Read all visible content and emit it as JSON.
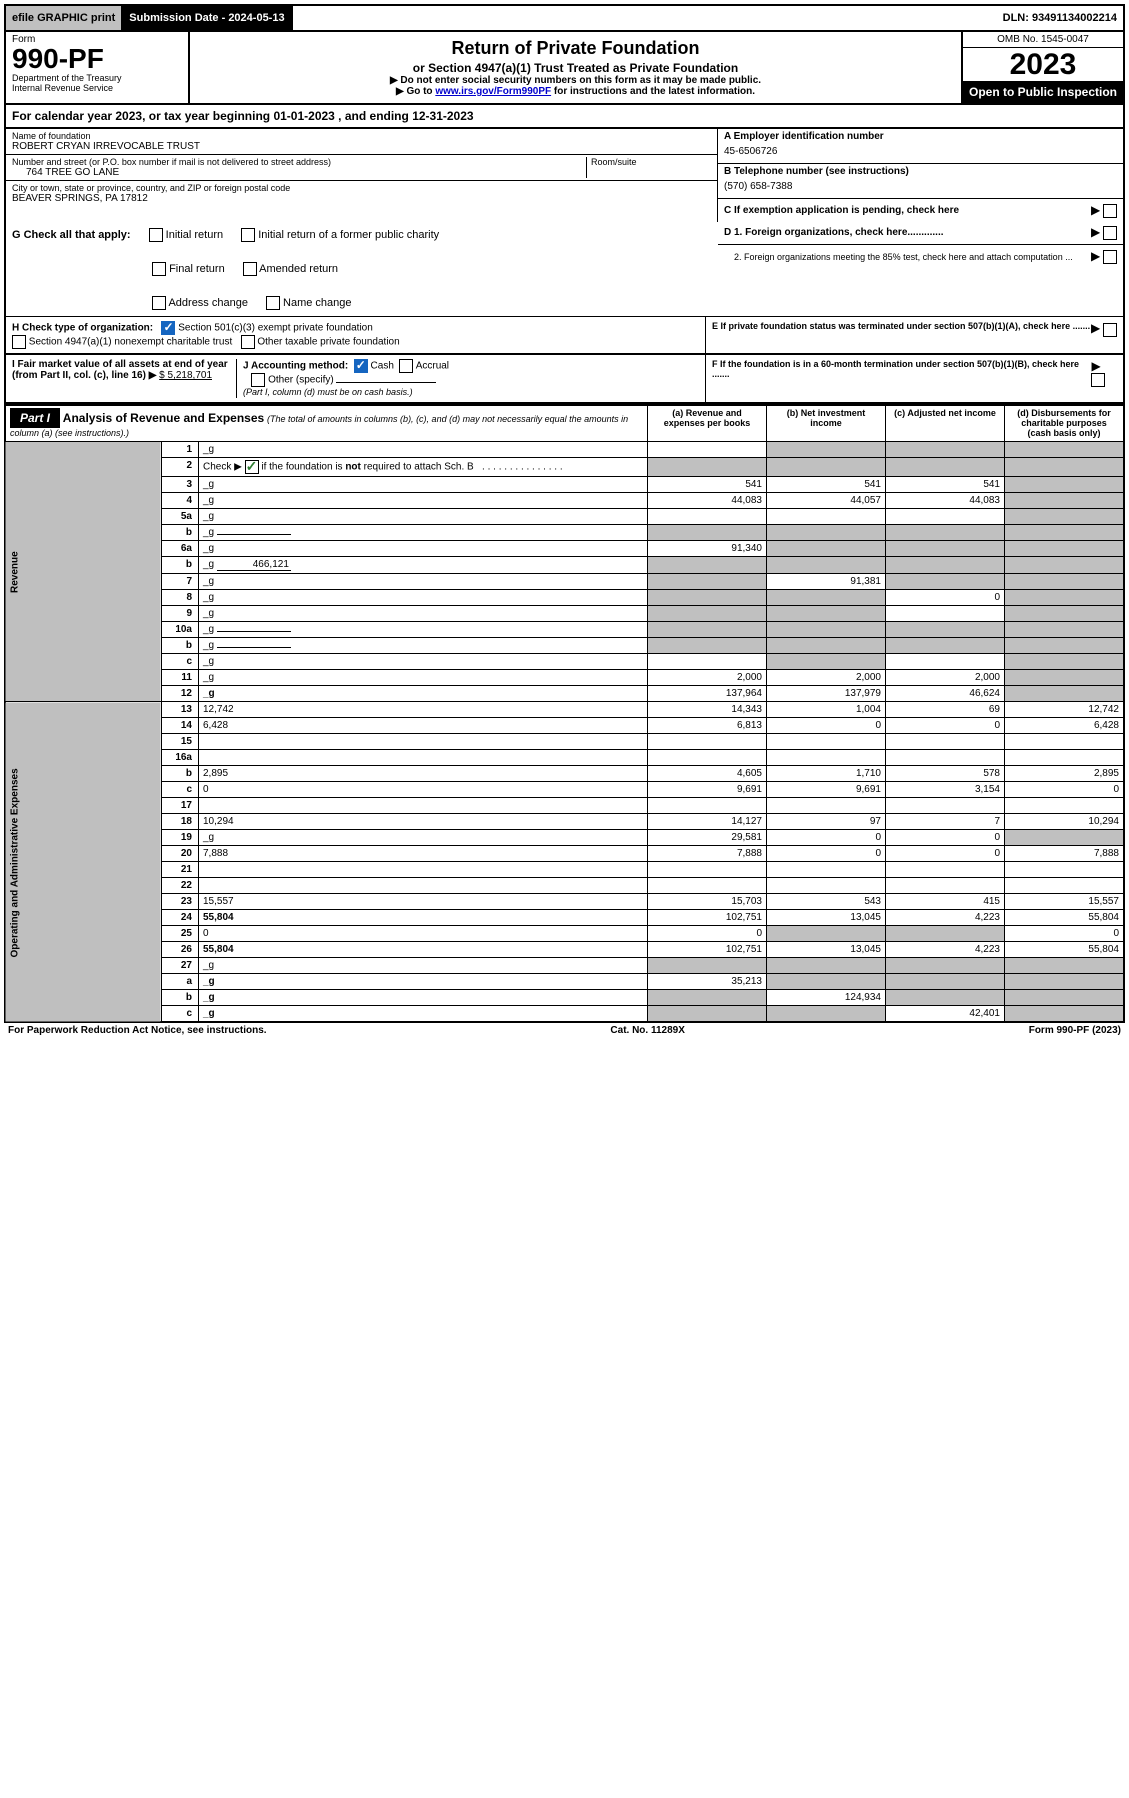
{
  "top_bar": {
    "efile": "efile GRAPHIC print",
    "submission": "Submission Date - 2024-05-13",
    "dln": "DLN: 93491134002214"
  },
  "header": {
    "form_label": "Form",
    "form_number": "990-PF",
    "dept1": "Department of the Treasury",
    "dept2": "Internal Revenue Service",
    "title": "Return of Private Foundation",
    "subtitle": "or Section 4947(a)(1) Trust Treated as Private Foundation",
    "note1": "▶ Do not enter social security numbers on this form as it may be made public.",
    "note2_pre": "▶ Go to ",
    "note2_link": "www.irs.gov/Form990PF",
    "note2_post": " for instructions and the latest information.",
    "omb": "OMB No. 1545-0047",
    "year": "2023",
    "open": "Open to Public Inspection"
  },
  "calendar": {
    "text_pre": "For calendar year 2023, or tax year beginning ",
    "begin": "01-01-2023",
    "mid": " , and ending ",
    "end": "12-31-2023"
  },
  "foundation": {
    "name_label": "Name of foundation",
    "name": "ROBERT CRYAN IRREVOCABLE TRUST",
    "street_label": "Number and street (or P.O. box number if mail is not delivered to street address)",
    "street": "764 TREE GO LANE",
    "room_label": "Room/suite",
    "room": "",
    "city_label": "City or town, state or province, country, and ZIP or foreign postal code",
    "city": "BEAVER SPRINGS, PA  17812",
    "ein_label": "A Employer identification number",
    "ein": "45-6506726",
    "phone_label": "B Telephone number (see instructions)",
    "phone": "(570) 658-7388",
    "c_label": "C If exemption application is pending, check here",
    "d1": "D 1. Foreign organizations, check here.............",
    "d2": "2. Foreign organizations meeting the 85% test, check here and attach computation ...",
    "e": "E If private foundation status was terminated under section 507(b)(1)(A), check here .......",
    "f": "F If the foundation is in a 60-month termination under section 507(b)(1)(B), check here .......",
    "g_label": "G Check all that apply:",
    "g_opts": [
      "Initial return",
      "Initial return of a former public charity",
      "Final return",
      "Amended return",
      "Address change",
      "Name change"
    ],
    "h_label": "H Check type of organization:",
    "h1": "Section 501(c)(3) exempt private foundation",
    "h2": "Section 4947(a)(1) nonexempt charitable trust",
    "h3": "Other taxable private foundation",
    "i_label": "I Fair market value of all assets at end of year (from Part II, col. (c), line 16) ▶",
    "i_value": "$  5,218,701",
    "j_label": "J Accounting method:",
    "j_cash": "Cash",
    "j_accrual": "Accrual",
    "j_other": "Other (specify)",
    "j_note": "(Part I, column (d) must be on cash basis.)"
  },
  "part1": {
    "label": "Part I",
    "title": "Analysis of Revenue and Expenses",
    "title_note": "(The total of amounts in columns (b), (c), and (d) may not necessarily equal the amounts in column (a) (see instructions).)",
    "col_a": "(a) Revenue and expenses per books",
    "col_b": "(b) Net investment income",
    "col_c": "(c) Adjusted net income",
    "col_d": "(d) Disbursements for charitable purposes (cash basis only)",
    "revenue_label": "Revenue",
    "expenses_label": "Operating and Administrative Expenses"
  },
  "rows": [
    {
      "n": "1",
      "d": "_g",
      "a": "",
      "b": "_g",
      "c": "_g"
    },
    {
      "n": "2",
      "d": "_g",
      "a": "_g",
      "b": "_g",
      "c": "_g",
      "check": true
    },
    {
      "n": "3",
      "d": "_g",
      "a": "541",
      "b": "541",
      "c": "541"
    },
    {
      "n": "4",
      "d": "_g",
      "a": "44,083",
      "b": "44,057",
      "c": "44,083"
    },
    {
      "n": "5a",
      "d": "_g",
      "a": "",
      "b": "",
      "c": ""
    },
    {
      "n": "b",
      "d": "_g",
      "a": "_g",
      "b": "_g",
      "c": "_g",
      "inline": ""
    },
    {
      "n": "6a",
      "d": "_g",
      "a": "91,340",
      "b": "_g",
      "c": "_g"
    },
    {
      "n": "b",
      "d": "_g",
      "a": "_g",
      "b": "_g",
      "c": "_g",
      "inline": "466,121"
    },
    {
      "n": "7",
      "d": "_g",
      "a": "_g",
      "b": "91,381",
      "c": "_g"
    },
    {
      "n": "8",
      "d": "_g",
      "a": "_g",
      "b": "_g",
      "c": "0"
    },
    {
      "n": "9",
      "d": "_g",
      "a": "_g",
      "b": "_g",
      "c": ""
    },
    {
      "n": "10a",
      "d": "_g",
      "a": "_g",
      "b": "_g",
      "c": "_g",
      "inline": ""
    },
    {
      "n": "b",
      "d": "_g",
      "a": "_g",
      "b": "_g",
      "c": "_g",
      "inline": ""
    },
    {
      "n": "c",
      "d": "_g",
      "a": "",
      "b": "_g",
      "c": ""
    },
    {
      "n": "11",
      "d": "_g",
      "a": "2,000",
      "b": "2,000",
      "c": "2,000"
    },
    {
      "n": "12",
      "d": "_g",
      "a": "137,964",
      "b": "137,979",
      "c": "46,624",
      "bold": true
    },
    {
      "n": "13",
      "d": "12,742",
      "a": "14,343",
      "b": "1,004",
      "c": "69"
    },
    {
      "n": "14",
      "d": "6,428",
      "a": "6,813",
      "b": "0",
      "c": "0"
    },
    {
      "n": "15",
      "d": "",
      "a": "",
      "b": "",
      "c": ""
    },
    {
      "n": "16a",
      "d": "",
      "a": "",
      "b": "",
      "c": ""
    },
    {
      "n": "b",
      "d": "2,895",
      "a": "4,605",
      "b": "1,710",
      "c": "578"
    },
    {
      "n": "c",
      "d": "0",
      "a": "9,691",
      "b": "9,691",
      "c": "3,154"
    },
    {
      "n": "17",
      "d": "",
      "a": "",
      "b": "",
      "c": ""
    },
    {
      "n": "18",
      "d": "10,294",
      "a": "14,127",
      "b": "97",
      "c": "7"
    },
    {
      "n": "19",
      "d": "_g",
      "a": "29,581",
      "b": "0",
      "c": "0"
    },
    {
      "n": "20",
      "d": "7,888",
      "a": "7,888",
      "b": "0",
      "c": "0"
    },
    {
      "n": "21",
      "d": "",
      "a": "",
      "b": "",
      "c": ""
    },
    {
      "n": "22",
      "d": "",
      "a": "",
      "b": "",
      "c": ""
    },
    {
      "n": "23",
      "d": "15,557",
      "a": "15,703",
      "b": "543",
      "c": "415"
    },
    {
      "n": "24",
      "d": "55,804",
      "a": "102,751",
      "b": "13,045",
      "c": "4,223",
      "bold": true
    },
    {
      "n": "25",
      "d": "0",
      "a": "0",
      "b": "_g",
      "c": "_g"
    },
    {
      "n": "26",
      "d": "55,804",
      "a": "102,751",
      "b": "13,045",
      "c": "4,223",
      "bold": true
    },
    {
      "n": "27",
      "d": "_g",
      "a": "_g",
      "b": "_g",
      "c": "_g"
    },
    {
      "n": "a",
      "d": "_g",
      "a": "35,213",
      "b": "_g",
      "c": "_g",
      "bold": true
    },
    {
      "n": "b",
      "d": "_g",
      "a": "_g",
      "b": "124,934",
      "c": "_g",
      "bold": true
    },
    {
      "n": "c",
      "d": "_g",
      "a": "_g",
      "b": "_g",
      "c": "42,401",
      "bold": true
    }
  ],
  "footer": {
    "left": "For Paperwork Reduction Act Notice, see instructions.",
    "center": "Cat. No. 11289X",
    "right": "Form 990-PF (2023)"
  }
}
